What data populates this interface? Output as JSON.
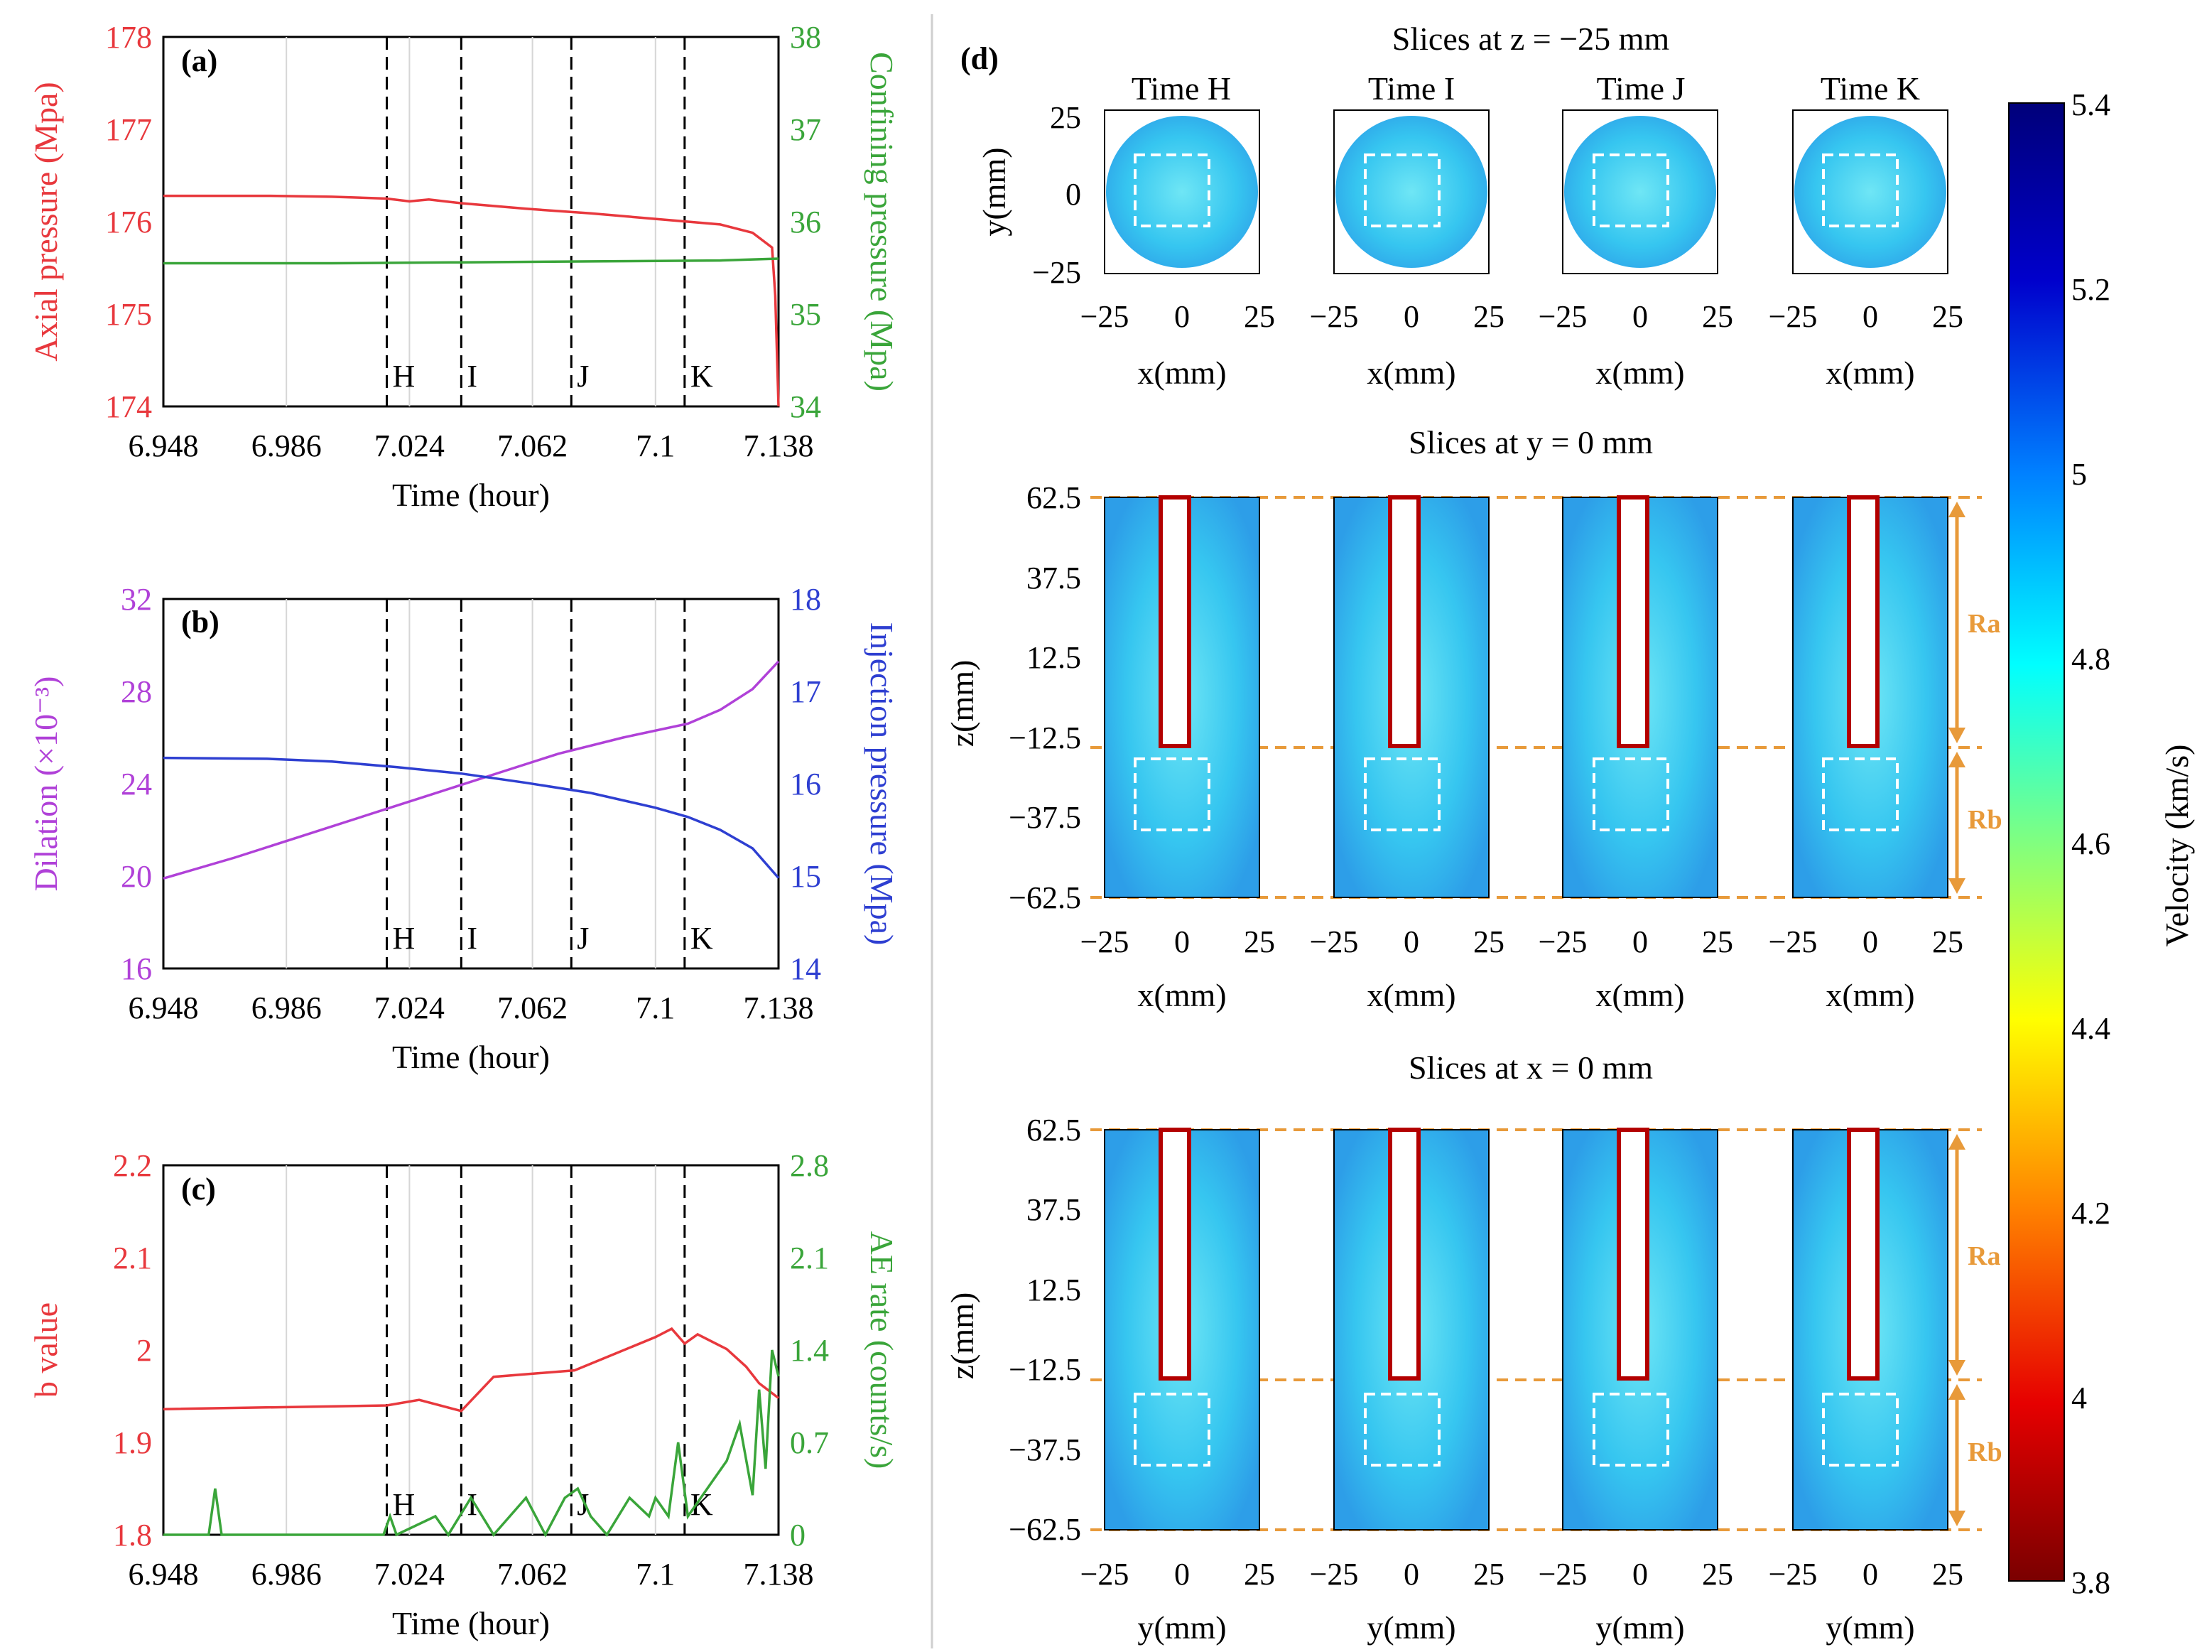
{
  "figure": {
    "panel_a": {
      "letter": "(a)"
    },
    "panel_b": {
      "letter": "(b)"
    },
    "panel_c": {
      "letter": "(c)"
    },
    "panel_d": {
      "letter": "(d)",
      "z_slice_title": "Slices at z = −25 mm",
      "y_slice_title": "Slices at y = 0 mm",
      "x_slice_title": "Slices at x = 0 mm",
      "time_labels": [
        "Time H",
        "Time I",
        "Time J",
        "Time K"
      ],
      "z_slice_ylabel": "y(mm)",
      "z_slice_xlabel": "x(mm)",
      "y_slice_ylabel": "z(mm)",
      "y_slice_xlabel": "x(mm)",
      "x_slice_ylabel": "z(mm)",
      "x_slice_xlabel": "y(mm)",
      "z_slice_yticks": [
        "25",
        "0",
        "−25"
      ],
      "xz_ticks": [
        "−25",
        "0",
        "25"
      ],
      "depth_ticks": [
        "62.5",
        "37.5",
        "12.5",
        "−12.5",
        "−37.5",
        "−62.5"
      ],
      "region_labels": [
        "Ra",
        "Rb"
      ],
      "colorbar": {
        "label": "Velocity (km/s)",
        "ticks": [
          "5.4",
          "5.2",
          "5",
          "4.8",
          "4.6",
          "4.4",
          "4.2",
          "4",
          "3.8"
        ]
      }
    }
  },
  "chart_data": [
    {
      "type": "line",
      "panel": "(a)",
      "xlabel": "Time (hour)",
      "ylabel": "Axial pressure  (Mpa)",
      "y2label": "Confining pressure (Mpa)",
      "xlim": [
        6.948,
        7.138
      ],
      "ylim": [
        174,
        178
      ],
      "y2lim": [
        34,
        38
      ],
      "x_ticks": [
        "6.948",
        "6.986",
        "7.024",
        "7.062",
        "7.1",
        "7.138"
      ],
      "y_ticks": [
        "178",
        "177",
        "176",
        "175",
        "174"
      ],
      "y2_ticks": [
        "38",
        "37",
        "36",
        "35",
        "34"
      ],
      "grid": true,
      "markers": [
        {
          "label": "H",
          "x": 7.017
        },
        {
          "label": "I",
          "x": 7.04
        },
        {
          "label": "J",
          "x": 7.074
        },
        {
          "label": "K",
          "x": 7.109
        }
      ],
      "series": [
        {
          "axis": "left",
          "color": "#e8383d",
          "x": [
            6.948,
            6.98,
            7.0,
            7.017,
            7.024,
            7.03,
            7.04,
            7.06,
            7.08,
            7.1,
            7.12,
            7.13,
            7.136,
            7.137,
            7.138
          ],
          "y": [
            176.28,
            176.28,
            176.27,
            176.25,
            176.22,
            176.24,
            176.2,
            176.14,
            176.09,
            176.03,
            175.97,
            175.88,
            175.72,
            175.2,
            174.0
          ]
        },
        {
          "axis": "right",
          "color": "#3aa53a",
          "x": [
            6.948,
            7.0,
            7.04,
            7.08,
            7.12,
            7.138
          ],
          "y": [
            35.55,
            35.55,
            35.56,
            35.57,
            35.58,
            35.6
          ]
        }
      ]
    },
    {
      "type": "line",
      "panel": "(b)",
      "xlabel": "Time (hour)",
      "ylabel": "Dilation  (×10⁻³)",
      "y2label": "Injection pressure (Mpa)",
      "xlim": [
        6.948,
        7.138
      ],
      "ylim": [
        16,
        32
      ],
      "y2lim": [
        14,
        18
      ],
      "x_ticks": [
        "6.948",
        "6.986",
        "7.024",
        "7.062",
        "7.1",
        "7.138"
      ],
      "y_ticks": [
        "32",
        "28",
        "24",
        "20",
        "16"
      ],
      "y2_ticks": [
        "18",
        "17",
        "16",
        "15",
        "14"
      ],
      "grid": true,
      "markers": [
        {
          "label": "H",
          "x": 7.017
        },
        {
          "label": "I",
          "x": 7.04
        },
        {
          "label": "J",
          "x": 7.074
        },
        {
          "label": "K",
          "x": 7.109
        }
      ],
      "series": [
        {
          "axis": "left",
          "color": "#b041d8",
          "x": [
            6.948,
            6.97,
            6.99,
            7.01,
            7.03,
            7.05,
            7.07,
            7.09,
            7.11,
            7.12,
            7.13,
            7.138
          ],
          "y": [
            19.9,
            20.8,
            21.7,
            22.6,
            23.5,
            24.4,
            25.3,
            26.0,
            26.6,
            27.2,
            28.1,
            29.3
          ]
        },
        {
          "axis": "right",
          "color": "#2e3fd1",
          "x": [
            6.948,
            6.98,
            7.0,
            7.02,
            7.04,
            7.06,
            7.08,
            7.1,
            7.11,
            7.12,
            7.13,
            7.138
          ],
          "y": [
            16.28,
            16.27,
            16.24,
            16.18,
            16.11,
            16.01,
            15.9,
            15.74,
            15.64,
            15.5,
            15.3,
            14.98
          ]
        }
      ]
    },
    {
      "type": "line",
      "panel": "(c)",
      "xlabel": "Time (hour)",
      "ylabel": "b value",
      "y2label": "AE rate (counts/s)",
      "xlim": [
        6.948,
        7.138
      ],
      "ylim": [
        1.8,
        2.2
      ],
      "y2lim": [
        0,
        2.8
      ],
      "x_ticks": [
        "6.948",
        "6.986",
        "7.024",
        "7.062",
        "7.1",
        "7.138"
      ],
      "y_ticks": [
        "2.2",
        "2.1",
        "2",
        "1.9",
        "1.8"
      ],
      "y2_ticks": [
        "2.8",
        "2.1",
        "1.4",
        "0.7",
        "0"
      ],
      "grid": true,
      "markers": [
        {
          "label": "H",
          "x": 7.017
        },
        {
          "label": "I",
          "x": 7.04
        },
        {
          "label": "J",
          "x": 7.074
        },
        {
          "label": "K",
          "x": 7.109
        }
      ],
      "series": [
        {
          "axis": "left",
          "color": "#e8383d",
          "x": [
            6.948,
            7.017,
            7.027,
            7.04,
            7.05,
            7.075,
            7.1,
            7.105,
            7.109,
            7.113,
            7.122,
            7.128,
            7.132,
            7.138
          ],
          "y": [
            1.936,
            1.94,
            1.946,
            1.934,
            1.971,
            1.978,
            2.014,
            2.023,
            2.007,
            2.017,
            2.001,
            1.982,
            1.964,
            1.948
          ]
        },
        {
          "axis": "right",
          "color": "#3aa53a",
          "x": [
            6.948,
            6.962,
            6.964,
            6.966,
            7.016,
            7.018,
            7.02,
            7.032,
            7.036,
            7.043,
            7.05,
            7.055,
            7.06,
            7.066,
            7.072,
            7.076,
            7.08,
            7.085,
            7.092,
            7.098,
            7.1,
            7.104,
            7.107,
            7.11,
            7.114,
            7.118,
            7.122,
            7.126,
            7.13,
            7.132,
            7.134,
            7.136,
            7.138
          ],
          "y": [
            0,
            0,
            0.35,
            0,
            0,
            0.14,
            0,
            0.14,
            0,
            0.28,
            0,
            0.14,
            0.28,
            0,
            0.28,
            0.35,
            0.14,
            0,
            0.28,
            0.14,
            0.28,
            0.14,
            0.7,
            0.14,
            0.28,
            0.42,
            0.56,
            0.84,
            0.3,
            1.1,
            0.5,
            1.4,
            1.2
          ]
        }
      ]
    }
  ]
}
